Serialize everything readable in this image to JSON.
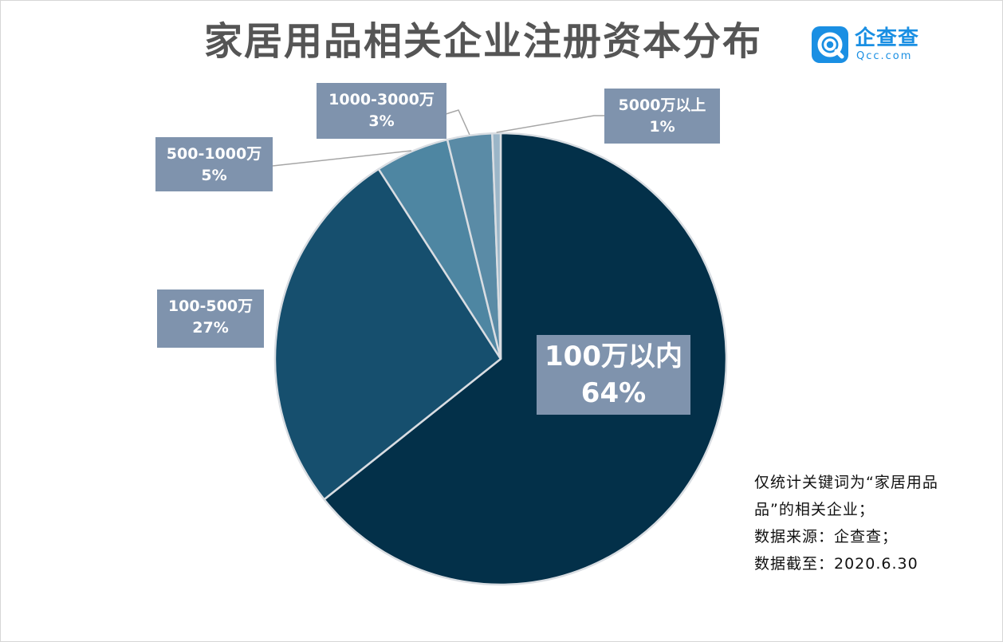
{
  "title": "家居用品相关企业注册资本分布",
  "logo": {
    "name_cn": "企查查",
    "name_en": "Qcc.com",
    "icon": "qcc-logo-icon",
    "color": "#1a8fe3"
  },
  "notes": [
    "仅统计关键词为“家居用品",
    "品”的相关企业；",
    "数据来源：企查查；",
    "数据截至：2020.6.30"
  ],
  "chart_data": {
    "type": "pie",
    "title": "家居用品相关企业注册资本分布",
    "start_angle_deg": 0,
    "direction": "clockwise",
    "slices": [
      {
        "label": "100万以内",
        "pct_label": "64%",
        "value": 64.3,
        "color": "#033049"
      },
      {
        "label": "100-500万",
        "pct_label": "27%",
        "value": 26.6,
        "color": "#164f6e"
      },
      {
        "label": "500-1000万",
        "pct_label": "5%",
        "value": 5.3,
        "color": "#4e86a2"
      },
      {
        "label": "1000-3000万",
        "pct_label": "3%",
        "value": 3.2,
        "color": "#5a8ba6"
      },
      {
        "label": "5000万以上",
        "pct_label": "1%",
        "value": 0.6,
        "color": "#9bb6c8"
      }
    ],
    "label_box_color": "#7f93ad",
    "slice_border_color": "#d9dde2",
    "leader_line_color": "#a6a6a6"
  }
}
